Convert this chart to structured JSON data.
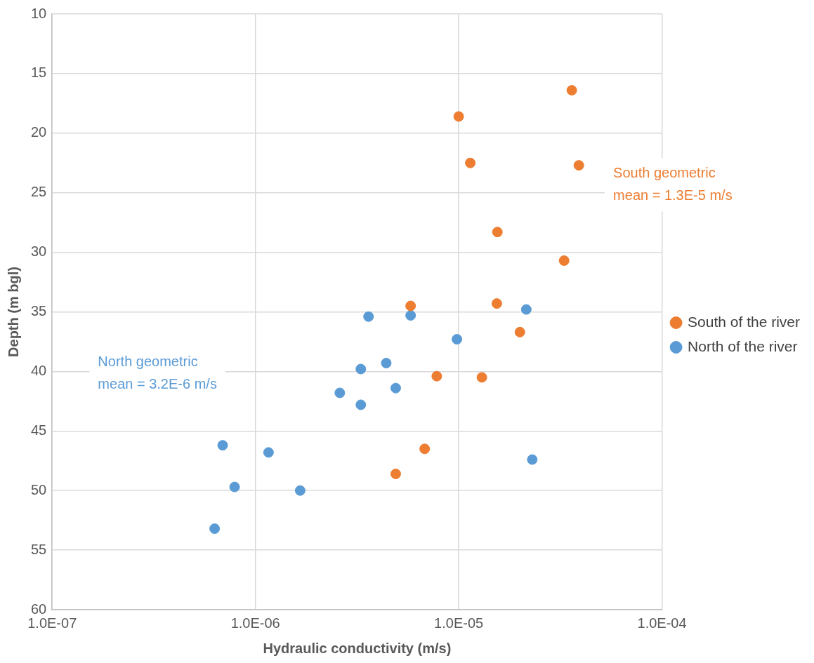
{
  "chart_data": {
    "type": "scatter",
    "xlabel": "Hydraulic conductivity (m/s)",
    "ylabel": "Depth (m bgl)",
    "log": "x",
    "xlim": [
      1e-07,
      0.0001
    ],
    "xticks": [
      {
        "value": 1e-07,
        "label": "1.0E-07"
      },
      {
        "value": 1e-06,
        "label": "1.0E-06"
      },
      {
        "value": 1e-05,
        "label": "1.0E-05"
      },
      {
        "value": 0.0001,
        "label": "1.0E-04"
      }
    ],
    "ylim": [
      60,
      10
    ],
    "yticks": [
      10,
      15,
      20,
      25,
      30,
      35,
      40,
      45,
      50,
      55,
      60
    ],
    "grid": true,
    "legend": "right",
    "marker": "circle",
    "series": [
      {
        "name": "South of the river",
        "color": "#ed7d31",
        "x": [
          3.6e-05,
          1e-05,
          1.14e-05,
          3.9e-05,
          1.55e-05,
          3.3e-05,
          5.8e-06,
          1.54e-05,
          2e-05,
          7.8e-06,
          1.3e-05,
          6.8e-06,
          4.9e-06
        ],
        "values": [
          16.4,
          18.6,
          22.5,
          22.7,
          28.3,
          30.7,
          34.5,
          34.3,
          36.7,
          40.4,
          40.5,
          46.5,
          48.6
        ]
      },
      {
        "name": "North of the river",
        "color": "#5b9bd5",
        "x": [
          3.6e-06,
          5.8e-06,
          2.15e-05,
          9.8e-06,
          4.4e-06,
          3.3e-06,
          4.9e-06,
          2.6e-06,
          3.3e-06,
          6.9e-07,
          1.16e-06,
          7.9e-07,
          1.66e-06,
          6.3e-07,
          2.3e-05
        ],
        "values": [
          35.4,
          35.3,
          34.8,
          37.3,
          39.3,
          39.8,
          41.4,
          41.8,
          42.8,
          46.2,
          46.8,
          49.7,
          50.0,
          53.2,
          47.4
        ]
      }
    ],
    "annotations": [
      "South geometric\nmean = 1.3E-5 m/s",
      "North geometric\nmean = 3.2E-6 m/s"
    ]
  }
}
